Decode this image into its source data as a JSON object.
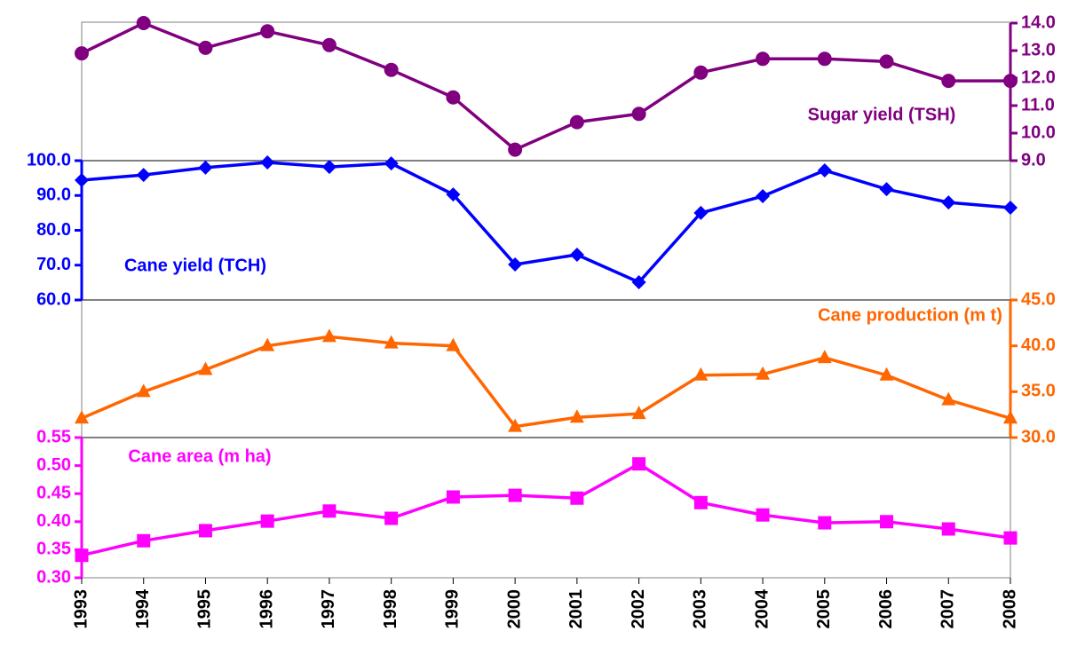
{
  "chart_data": [
    {
      "type": "line",
      "x": [
        1993,
        1994,
        1995,
        1996,
        1997,
        1998,
        1999,
        2000,
        2001,
        2002,
        2003,
        2004,
        2005,
        2006,
        2007,
        2008
      ],
      "series": [
        {
          "name": "Sugar yield (TSH)",
          "color": "#800080",
          "marker": "circle",
          "values": [
            12.9,
            14.0,
            13.1,
            13.7,
            13.2,
            12.3,
            11.3,
            9.4,
            10.4,
            10.7,
            12.2,
            12.7,
            12.7,
            12.6,
            11.9,
            11.9
          ]
        }
      ],
      "axis_side": "right",
      "ylim": [
        9,
        14
      ],
      "yticks": [
        {
          "value": 9,
          "label": "9.0"
        },
        {
          "value": 10,
          "label": "10.0"
        },
        {
          "value": 11,
          "label": "11.0"
        },
        {
          "value": 12,
          "label": "12.0"
        },
        {
          "value": 13,
          "label": "13.0"
        },
        {
          "value": 14,
          "label": "14.0"
        }
      ]
    },
    {
      "type": "line",
      "x": [
        1993,
        1994,
        1995,
        1996,
        1997,
        1998,
        1999,
        2000,
        2001,
        2002,
        2003,
        2004,
        2005,
        2006,
        2007,
        2008
      ],
      "series": [
        {
          "name": "Cane yield (TCH)",
          "color": "#0000ff",
          "marker": "diamond",
          "values": [
            94.4,
            95.9,
            98.0,
            99.5,
            98.2,
            99.2,
            90.3,
            70.2,
            73.0,
            65.1,
            85.0,
            89.8,
            97.2,
            91.8,
            88.0,
            86.5
          ]
        }
      ],
      "axis_side": "left",
      "ylim": [
        60,
        100
      ],
      "yticks": [
        {
          "value": 60,
          "label": "60.0"
        },
        {
          "value": 70,
          "label": "70.0"
        },
        {
          "value": 80,
          "label": "80.0"
        },
        {
          "value": 90,
          "label": "90.0"
        },
        {
          "value": 100,
          "label": "100.0"
        }
      ]
    },
    {
      "type": "line",
      "x": [
        1993,
        1994,
        1995,
        1996,
        1997,
        1998,
        1999,
        2000,
        2001,
        2002,
        2003,
        2004,
        2005,
        2006,
        2007,
        2008
      ],
      "series": [
        {
          "name": "Cane production (m t)",
          "color": "#ff6600",
          "marker": "triangle",
          "values": [
            32.1,
            35.0,
            37.4,
            40.0,
            41.0,
            40.3,
            40.0,
            31.2,
            32.2,
            32.6,
            36.8,
            36.9,
            38.7,
            36.8,
            34.1,
            32.1
          ]
        }
      ],
      "axis_side": "right",
      "ylim": [
        30,
        45
      ],
      "yticks": [
        {
          "value": 30,
          "label": "30.0"
        },
        {
          "value": 35,
          "label": "35.0"
        },
        {
          "value": 40,
          "label": "40.0"
        },
        {
          "value": 45,
          "label": "45.0"
        }
      ]
    },
    {
      "type": "line",
      "x": [
        1993,
        1994,
        1995,
        1996,
        1997,
        1998,
        1999,
        2000,
        2001,
        2002,
        2003,
        2004,
        2005,
        2006,
        2007,
        2008
      ],
      "series": [
        {
          "name": "Cane area (m ha)",
          "color": "#ff00ff",
          "marker": "square",
          "values": [
            0.34,
            0.366,
            0.384,
            0.401,
            0.419,
            0.406,
            0.444,
            0.447,
            0.442,
            0.503,
            0.434,
            0.412,
            0.398,
            0.4,
            0.387,
            0.371
          ]
        }
      ],
      "axis_side": "left",
      "ylim": [
        0.3,
        0.55
      ],
      "yticks": [
        {
          "value": 0.3,
          "label": "0.30"
        },
        0.35,
        {
          "value": 0.4,
          "label": "0.40"
        },
        0.45,
        {
          "value": 0.5,
          "label": "0.50"
        },
        0.55
      ]
    }
  ]
}
